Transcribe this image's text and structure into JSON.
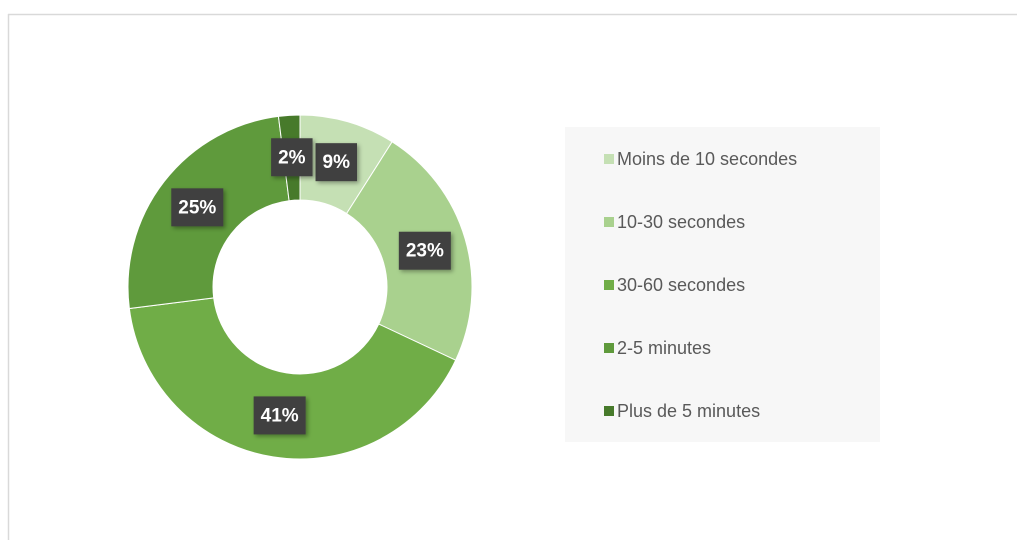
{
  "chart_data": {
    "type": "donut",
    "categories": [
      "Moins de 10 secondes",
      "10-30 secondes",
      "30-60 secondes",
      "2-5 minutes",
      "Plus de 5 minutes"
    ],
    "values": [
      9,
      23,
      41,
      25,
      2
    ],
    "value_labels": [
      "9%",
      "23%",
      "41%",
      "25%",
      "2%"
    ],
    "colors": [
      "#c5e0b4",
      "#a9d18e",
      "#70ad47",
      "#5f9a3c",
      "#477a2b"
    ],
    "legend": "right"
  }
}
